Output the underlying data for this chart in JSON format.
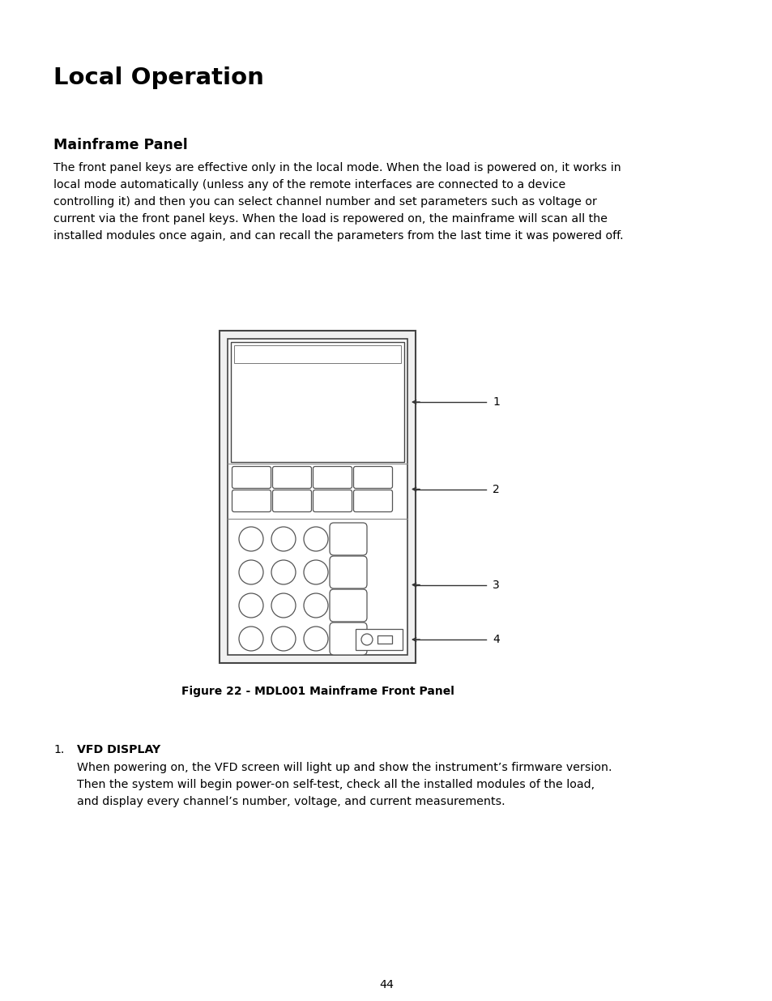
{
  "title": "Local Operation",
  "section_title": "Mainframe Panel",
  "para_lines": [
    "The front panel keys are effective only in the local mode. When the load is powered on, it works in",
    "local mode automatically (unless any of the remote interfaces are connected to a device",
    "controlling it) and then you can select channel number and set parameters such as voltage or",
    "current via the front panel keys. When the load is repowered on, the mainframe will scan all the",
    "installed modules once again, and can recall the parameters from the last time it was powered off."
  ],
  "figure_caption": "Figure 22 - MDL001 Mainframe Front Panel",
  "list_item_number": "1.",
  "list_item_title": "VFD DISPLAY",
  "list_text_lines": [
    "When powering on, the VFD screen will light up and show the instrument’s firmware version.",
    "Then the system will begin power-on self-test, check all the installed modules of the load,",
    "and display every channel’s number, voltage, and current measurements."
  ],
  "page_number": "44",
  "bg_color": "#ffffff",
  "text_color": "#000000",
  "arrow_color": "#333333",
  "panel_color": "#f5f5f5",
  "border_color": "#444444"
}
